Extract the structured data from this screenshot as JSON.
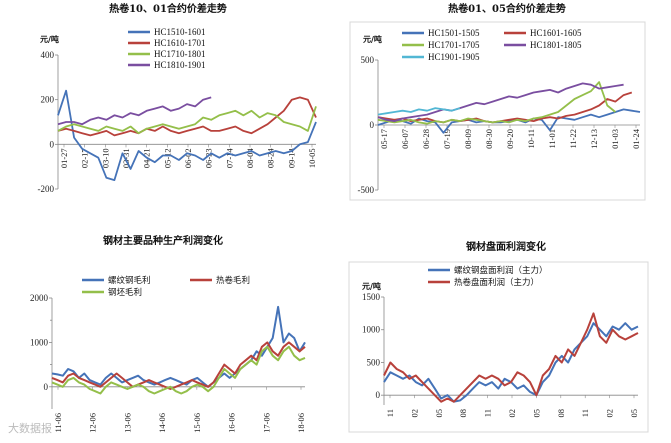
{
  "watermark": "大数据报",
  "chart_data": [
    {
      "id": "c1",
      "type": "line",
      "title": "热卷10、01合约价差走势",
      "ylabel": "元/吨",
      "ylim": [
        -200,
        400
      ],
      "yticks": [
        -200,
        0,
        200,
        400
      ],
      "xlabels": [
        "01-27",
        "02-17",
        "03-10",
        "03-31",
        "04-21",
        "05-12",
        "06-02",
        "06-23",
        "07-14",
        "08-04",
        "08-24",
        "09-14",
        "10-05"
      ],
      "series": [
        {
          "name": "HC1510-1601",
          "color": "#4573b8",
          "values": [
            130,
            240,
            30,
            -20,
            -40,
            -60,
            -150,
            -160,
            -40,
            -110,
            -30,
            -60,
            -80,
            -50,
            -50,
            -70,
            -40,
            -50,
            -70,
            -40,
            -60,
            -40,
            -50,
            -40,
            -30,
            -50,
            -40,
            -30,
            -40,
            -30,
            0,
            10,
            100
          ]
        },
        {
          "name": "HC1610-1701",
          "color": "#b8413b",
          "values": [
            60,
            70,
            60,
            50,
            40,
            50,
            60,
            40,
            50,
            60,
            50,
            70,
            60,
            80,
            60,
            50,
            60,
            70,
            80,
            60,
            60,
            70,
            80,
            60,
            50,
            70,
            90,
            120,
            150,
            200,
            210,
            200,
            120
          ]
        },
        {
          "name": "HC1710-1801",
          "color": "#94bf4a",
          "values": [
            60,
            80,
            90,
            80,
            70,
            60,
            80,
            70,
            60,
            80,
            50,
            70,
            80,
            90,
            80,
            70,
            80,
            90,
            120,
            110,
            130,
            140,
            150,
            130,
            150,
            120,
            140,
            130,
            100,
            90,
            80,
            60,
            170
          ]
        },
        {
          "name": "HC1810-1901",
          "color": "#7a4ea0",
          "values": [
            90,
            100,
            100,
            90,
            110,
            120,
            110,
            130,
            120,
            140,
            130,
            150,
            160,
            170,
            150,
            160,
            180,
            170,
            200,
            210
          ]
        }
      ]
    },
    {
      "id": "c2",
      "type": "line",
      "title": "热卷01、05合约价差走势",
      "ylabel": "元/吨",
      "ylim": [
        -500,
        500
      ],
      "yticks": [
        -500,
        0,
        500
      ],
      "xlabels": [
        "05-17",
        "06-07",
        "06-28",
        "07-19",
        "08-09",
        "08-30",
        "09-20",
        "10-11",
        "11-01",
        "11-22",
        "12-13",
        "01-03",
        "01-24"
      ],
      "series": [
        {
          "name": "HC1501-1505",
          "color": "#4573b8",
          "values": [
            0,
            20,
            40,
            30,
            10,
            50,
            30,
            20,
            -60,
            20,
            30,
            40,
            20,
            30,
            20,
            20,
            30,
            40,
            20,
            50,
            40,
            -40,
            60,
            50,
            40,
            60,
            80,
            60,
            80,
            100,
            120,
            110,
            100
          ]
        },
        {
          "name": "HC1601-1605",
          "color": "#b8413b",
          "values": [
            60,
            50,
            40,
            50,
            30,
            40,
            50,
            30,
            20,
            40,
            30,
            40,
            50,
            30,
            20,
            30,
            40,
            50,
            40,
            30,
            50,
            60,
            50,
            70,
            80,
            100,
            120,
            150,
            200,
            180,
            230,
            250
          ]
        },
        {
          "name": "HC1701-1705",
          "color": "#94bf4a",
          "values": [
            40,
            30,
            20,
            30,
            40,
            20,
            10,
            30,
            20,
            40,
            30,
            50,
            40,
            30,
            20,
            30,
            20,
            40,
            30,
            50,
            60,
            80,
            100,
            150,
            200,
            230,
            260,
            330,
            150,
            100
          ]
        },
        {
          "name": "HC1801-1805",
          "color": "#7a4ea0",
          "values": [
            60,
            40,
            30,
            50,
            60,
            70,
            80,
            100,
            120,
            110,
            130,
            150,
            170,
            160,
            180,
            200,
            220,
            210,
            230,
            250,
            260,
            270,
            250,
            280,
            300,
            320,
            310,
            280,
            290,
            300,
            310
          ]
        },
        {
          "name": "HC1901-1905",
          "color": "#52b7d4",
          "values": [
            80,
            90,
            100,
            110,
            100,
            120,
            110,
            130,
            120,
            110,
            130
          ]
        }
      ]
    },
    {
      "id": "c3",
      "type": "line",
      "title": "钢材主要品种生产利润变化",
      "ylim": [
        -500,
        2000
      ],
      "yticks": [
        0,
        1000,
        2000
      ],
      "yticklabels": [
        "0",
        "1000",
        "2000"
      ],
      "extraTicks": [
        500,
        1500
      ],
      "xlabels": [
        "11-06",
        "12-06",
        "13-06",
        "14-06",
        "15-06",
        "16-06",
        "17-06",
        "18-06"
      ],
      "series": [
        {
          "name": "螺纹钢毛利",
          "color": "#4573b8",
          "values": [
            300,
            280,
            250,
            400,
            350,
            200,
            300,
            150,
            100,
            50,
            200,
            300,
            200,
            100,
            150,
            200,
            250,
            150,
            100,
            50,
            100,
            150,
            200,
            150,
            100,
            50,
            150,
            200,
            100,
            0,
            100,
            200,
            300,
            200,
            300,
            400,
            500,
            600,
            800,
            700,
            900,
            1100,
            1800,
            1000,
            1200,
            1100,
            800,
            1000
          ]
        },
        {
          "name": "热卷毛利",
          "color": "#b8413b",
          "values": [
            200,
            150,
            100,
            250,
            300,
            200,
            150,
            100,
            50,
            0,
            100,
            200,
            300,
            200,
            100,
            0,
            50,
            100,
            150,
            100,
            50,
            0,
            -50,
            0,
            50,
            100,
            150,
            100,
            50,
            0,
            100,
            300,
            500,
            400,
            300,
            500,
            600,
            700,
            600,
            900,
            1000,
            800,
            700,
            900,
            1000,
            900,
            800,
            900
          ]
        },
        {
          "name": "钢坯毛利",
          "color": "#94bf4a",
          "values": [
            100,
            50,
            0,
            150,
            200,
            100,
            50,
            -50,
            -100,
            -150,
            0,
            100,
            50,
            0,
            -50,
            0,
            50,
            0,
            -100,
            -150,
            -100,
            -50,
            0,
            -100,
            -150,
            -100,
            0,
            50,
            0,
            -100,
            0,
            200,
            400,
            300,
            200,
            400,
            500,
            600,
            500,
            800,
            900,
            700,
            600,
            800,
            900,
            700,
            600,
            650
          ]
        }
      ]
    },
    {
      "id": "c4",
      "type": "line",
      "title": "钢材盘面利润变化",
      "ylabel": "元/吨",
      "ylim": [
        -150,
        1500
      ],
      "yticks": [
        0,
        500,
        1000,
        1500
      ],
      "xlabels": [
        "11",
        "02",
        "05",
        "08",
        "11",
        "02",
        "05",
        "08",
        "11",
        "02",
        "05"
      ],
      "series": [
        {
          "name": "螺纹钢盘面利润（主力）",
          "color": "#4573b8",
          "values": [
            200,
            350,
            300,
            250,
            300,
            200,
            150,
            250,
            100,
            -50,
            0,
            -100,
            -80,
            0,
            100,
            200,
            150,
            200,
            100,
            250,
            200,
            100,
            150,
            50,
            0,
            200,
            300,
            500,
            600,
            500,
            700,
            800,
            900,
            1100,
            1000,
            900,
            1050,
            1000,
            1100,
            1000,
            1050
          ]
        },
        {
          "name": "热卷盘面利润（主力）",
          "color": "#b8413b",
          "values": [
            300,
            500,
            400,
            350,
            250,
            300,
            200,
            100,
            0,
            -100,
            -50,
            -100,
            0,
            100,
            200,
            300,
            250,
            300,
            250,
            150,
            200,
            350,
            300,
            200,
            0,
            300,
            400,
            600,
            500,
            700,
            600,
            800,
            1000,
            1250,
            900,
            800,
            1000,
            900,
            850,
            900,
            950
          ]
        }
      ]
    }
  ]
}
